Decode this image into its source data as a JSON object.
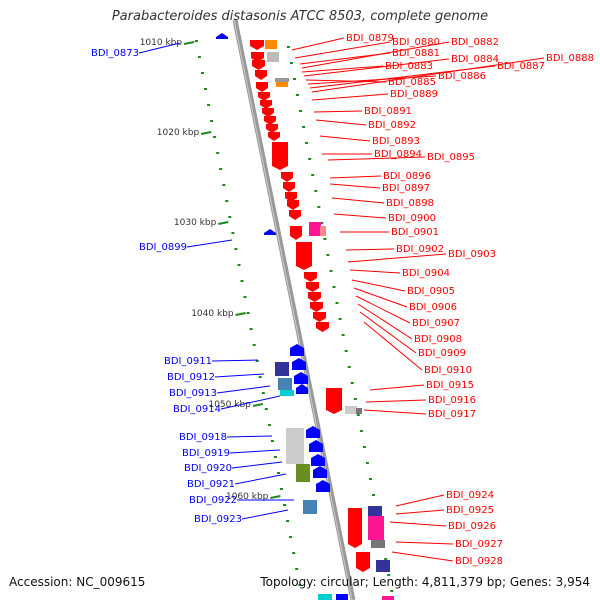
{
  "title": "Parabacteroides distasonis ATCC 8503, complete genome",
  "footer": {
    "accession": "Accession: NC_009615",
    "topology": "Topology: circular; Length: 4,811,379 bp; Genes: 3,954"
  },
  "colors": {
    "forward": "#ff0000",
    "reverse": "#0000ff",
    "backbone": "#999999",
    "ticks": "#1a8a1a"
  },
  "scale_labels": [
    "1010 kbp",
    "1020 kbp",
    "1030 kbp",
    "1040 kbp",
    "1050 kbp",
    "1060 kbp"
  ],
  "reverse_labels": [
    "BDI_0873",
    "BDI_0899",
    "BDI_0911",
    "BDI_0912",
    "BDI_0913",
    "BDI_0914",
    "BDI_0918",
    "BDI_0919",
    "BDI_0920",
    "BDI_0921",
    "BDI_0922",
    "BDI_0923"
  ],
  "forward_labels": [
    "BDI_0879",
    "BDI_0880",
    "BDI_0881",
    "BDI_0882",
    "BDI_0883",
    "BDI_0884",
    "BDI_0885",
    "BDI_0886",
    "BDI_0887",
    "BDI_0888",
    "BDI_0889",
    "BDI_0891",
    "BDI_0892",
    "BDI_0893",
    "BDI_0894",
    "BDI_0895",
    "BDI_0896",
    "BDI_0897",
    "BDI_0898",
    "BDI_0900",
    "BDI_0901",
    "BDI_0902",
    "BDI_0903",
    "BDI_0904",
    "BDI_0905",
    "BDI_0906",
    "BDI_0907",
    "BDI_0908",
    "BDI_0909",
    "BDI_0910",
    "BDI_0915",
    "BDI_0916",
    "BDI_0917",
    "BDI_0924",
    "BDI_0925",
    "BDI_0926",
    "BDI_0927",
    "BDI_0928"
  ]
}
